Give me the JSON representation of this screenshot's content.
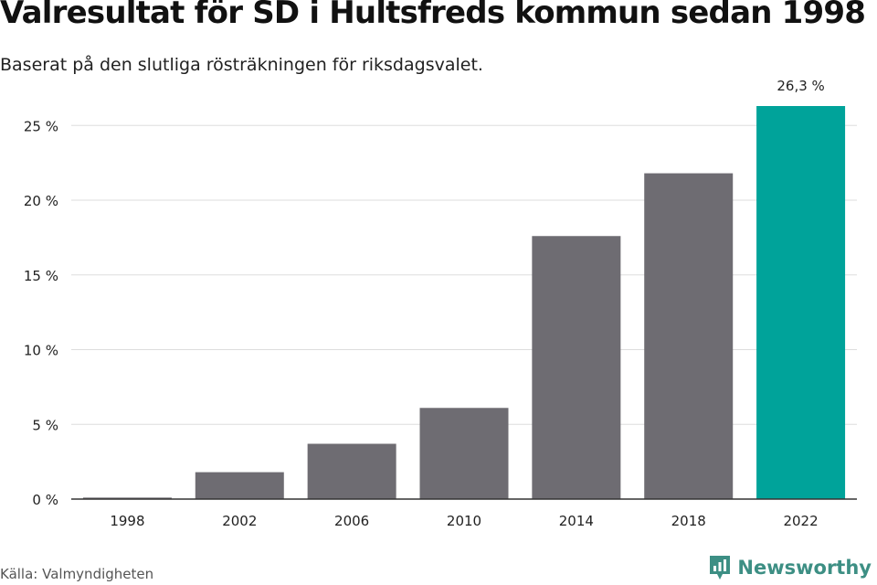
{
  "colors": {
    "bar": "#6e6c72",
    "highlight": "#00a39a",
    "grid": "#dddddd",
    "axis": "#333333",
    "brand": "#3d8f84"
  },
  "source": "Källa: Valmyndigheten",
  "brand": {
    "name": "Newsworthy",
    "icon": "newsworthy-logo-icon"
  },
  "chart_data": {
    "type": "bar",
    "title": "Valresultat för SD i Hultsfreds kommun sedan 1998",
    "subtitle": "Baserat på den slutliga rösträkningen för riksdagsvalet.",
    "categories": [
      "1998",
      "2002",
      "2006",
      "2010",
      "2014",
      "2018",
      "2022"
    ],
    "values": [
      0.1,
      1.8,
      3.7,
      6.1,
      17.6,
      21.8,
      26.3
    ],
    "highlight_index": 6,
    "data_labels": [
      "",
      "",
      "",
      "",
      "",
      "",
      "26,3 %"
    ],
    "yticks": [
      "0 %",
      "5 %",
      "10 %",
      "15 %",
      "20 %",
      "25 %"
    ],
    "ytick_values": [
      0,
      5,
      10,
      15,
      20,
      25
    ],
    "ylim": [
      0,
      26.3
    ],
    "grid": true
  }
}
